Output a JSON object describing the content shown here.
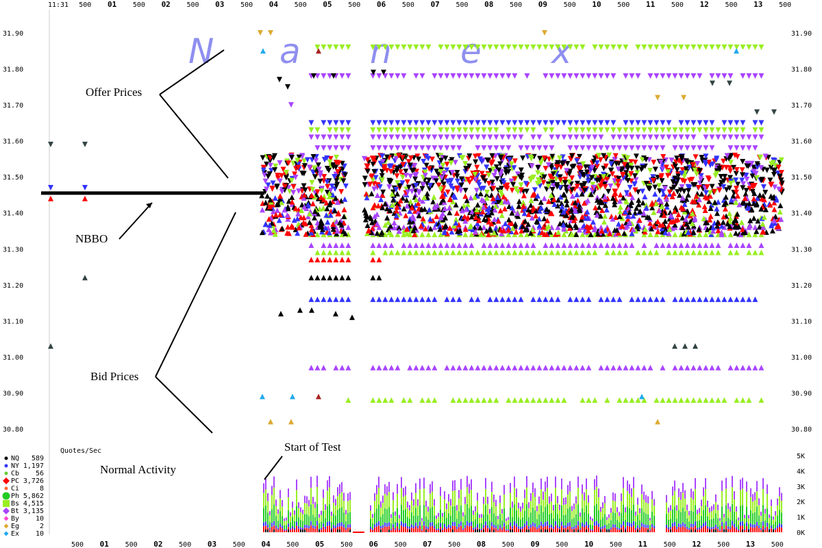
{
  "chart_data": {
    "type": "scatter",
    "watermark": [
      "N",
      "a",
      "n",
      "e",
      "x"
    ],
    "x_ticks_top": [
      {
        "label": "11:31",
        "major": false
      },
      {
        "label": "500",
        "major": false
      },
      {
        "label": "01",
        "major": true
      },
      {
        "label": "500",
        "major": false
      },
      {
        "label": "02",
        "major": true
      },
      {
        "label": "500",
        "major": false
      },
      {
        "label": "03",
        "major": true
      },
      {
        "label": "500",
        "major": false
      },
      {
        "label": "04",
        "major": true
      },
      {
        "label": "500",
        "major": false
      },
      {
        "label": "05",
        "major": true
      },
      {
        "label": "500",
        "major": false
      },
      {
        "label": "06",
        "major": true
      },
      {
        "label": "500",
        "major": false
      },
      {
        "label": "07",
        "major": true
      },
      {
        "label": "500",
        "major": false
      },
      {
        "label": "08",
        "major": true
      },
      {
        "label": "500",
        "major": false
      },
      {
        "label": "09",
        "major": true
      },
      {
        "label": "500",
        "major": false
      },
      {
        "label": "10",
        "major": true
      },
      {
        "label": "500",
        "major": false
      },
      {
        "label": "11",
        "major": true
      },
      {
        "label": "500",
        "major": false
      },
      {
        "label": "12",
        "major": true
      },
      {
        "label": "500",
        "major": false
      },
      {
        "label": "13",
        "major": true
      },
      {
        "label": "500",
        "major": false
      }
    ],
    "x_ticks_bottom": [
      {
        "label": "500",
        "major": false
      },
      {
        "label": "01",
        "major": true
      },
      {
        "label": "500",
        "major": false
      },
      {
        "label": "02",
        "major": true
      },
      {
        "label": "500",
        "major": false
      },
      {
        "label": "03",
        "major": true
      },
      {
        "label": "500",
        "major": false
      },
      {
        "label": "04",
        "major": true
      },
      {
        "label": "500",
        "major": false
      },
      {
        "label": "05",
        "major": true
      },
      {
        "label": "500",
        "major": false
      },
      {
        "label": "06",
        "major": true
      },
      {
        "label": "500",
        "major": false
      },
      {
        "label": "07",
        "major": true
      },
      {
        "label": "500",
        "major": false
      },
      {
        "label": "08",
        "major": true
      },
      {
        "label": "500",
        "major": false
      },
      {
        "label": "09",
        "major": true
      },
      {
        "label": "500",
        "major": false
      },
      {
        "label": "10",
        "major": true
      },
      {
        "label": "500",
        "major": false
      },
      {
        "label": "11",
        "major": true
      },
      {
        "label": "500",
        "major": false
      },
      {
        "label": "12",
        "major": true
      },
      {
        "label": "500",
        "major": false
      },
      {
        "label": "13",
        "major": true
      },
      {
        "label": "500",
        "major": false
      }
    ],
    "y_ticks": [
      "31.90",
      "31.80",
      "31.70",
      "31.60",
      "31.50",
      "31.40",
      "31.30",
      "31.20",
      "31.10",
      "31.00",
      "30.90",
      "30.80"
    ],
    "ylim": [
      30.8,
      31.9
    ],
    "volume_axis_label": "Quotes/Sec",
    "volume_ticks": [
      "5K",
      "4K",
      "3K",
      "2K",
      "1K",
      "0K"
    ],
    "volume_ylim": [
      0,
      5000
    ],
    "nbbo_price": 31.455,
    "price_levels": [
      {
        "price": 31.86,
        "exchange": "Bs",
        "from": 0.33,
        "to": 0.97
      },
      {
        "price": 31.78,
        "exchange": "Bt",
        "from": 0.33,
        "to": 0.97
      },
      {
        "price": 31.65,
        "exchange": "NY",
        "from": 0.33,
        "to": 0.97
      },
      {
        "price": 31.63,
        "exchange": "Bs",
        "from": 0.33,
        "to": 0.97
      },
      {
        "price": 31.61,
        "exchange": "Bt",
        "from": 0.33,
        "to": 0.97
      },
      {
        "price": 31.58,
        "exchange": "Bt",
        "from": 0.33,
        "to": 0.97
      },
      {
        "price": 31.36,
        "exchange": "Bt",
        "from": 0.33,
        "to": 0.97
      },
      {
        "price": 31.34,
        "exchange": "Bs",
        "from": 0.33,
        "to": 0.97
      },
      {
        "price": 31.31,
        "exchange": "Bt",
        "from": 0.33,
        "to": 0.97
      },
      {
        "price": 31.29,
        "exchange": "Bs",
        "from": 0.33,
        "to": 0.97
      },
      {
        "price": 31.27,
        "exchange": "PC",
        "from": 0.33,
        "to": 0.45
      },
      {
        "price": 31.22,
        "exchange": "NQ",
        "from": 0.33,
        "to": 0.45
      },
      {
        "price": 31.16,
        "exchange": "NY",
        "from": 0.33,
        "to": 0.97
      },
      {
        "price": 30.97,
        "exchange": "Bt",
        "from": 0.33,
        "to": 0.97
      },
      {
        "price": 30.88,
        "exchange": "Bs",
        "from": 0.38,
        "to": 0.97
      }
    ],
    "annotations": [
      "Offer Prices",
      "NBBO",
      "Bid Prices",
      "Normal Activity",
      "Start of Test"
    ],
    "legend": [
      {
        "code": "NQ",
        "count": "589",
        "color": "#000000",
        "shape": "dot"
      },
      {
        "code": "NY",
        "count": "1,197",
        "color": "#3333ff",
        "shape": "dot"
      },
      {
        "code": "Cb",
        "count": "56",
        "color": "#66cc33",
        "shape": "dot"
      },
      {
        "code": "PC",
        "count": "3,726",
        "color": "#ff0000",
        "shape": "diamond-large"
      },
      {
        "code": "Ci",
        "count": "8",
        "color": "#ff6633",
        "shape": "dot"
      },
      {
        "code": "Ph",
        "count": "5,862",
        "color": "#22cc22",
        "shape": "circle-large"
      },
      {
        "code": "Bs",
        "count": "4,515",
        "color": "#99ee22",
        "shape": "square-large"
      },
      {
        "code": "Bt",
        "count": "3,135",
        "color": "#aa44ff",
        "shape": "diamond-large"
      },
      {
        "code": "By",
        "count": "10",
        "color": "#ff44cc",
        "shape": "diamond"
      },
      {
        "code": "Eg",
        "count": "2",
        "color": "#ddaa33",
        "shape": "diamond"
      },
      {
        "code": "Ex",
        "count": "10",
        "color": "#22aaee",
        "shape": "diamond"
      }
    ]
  }
}
